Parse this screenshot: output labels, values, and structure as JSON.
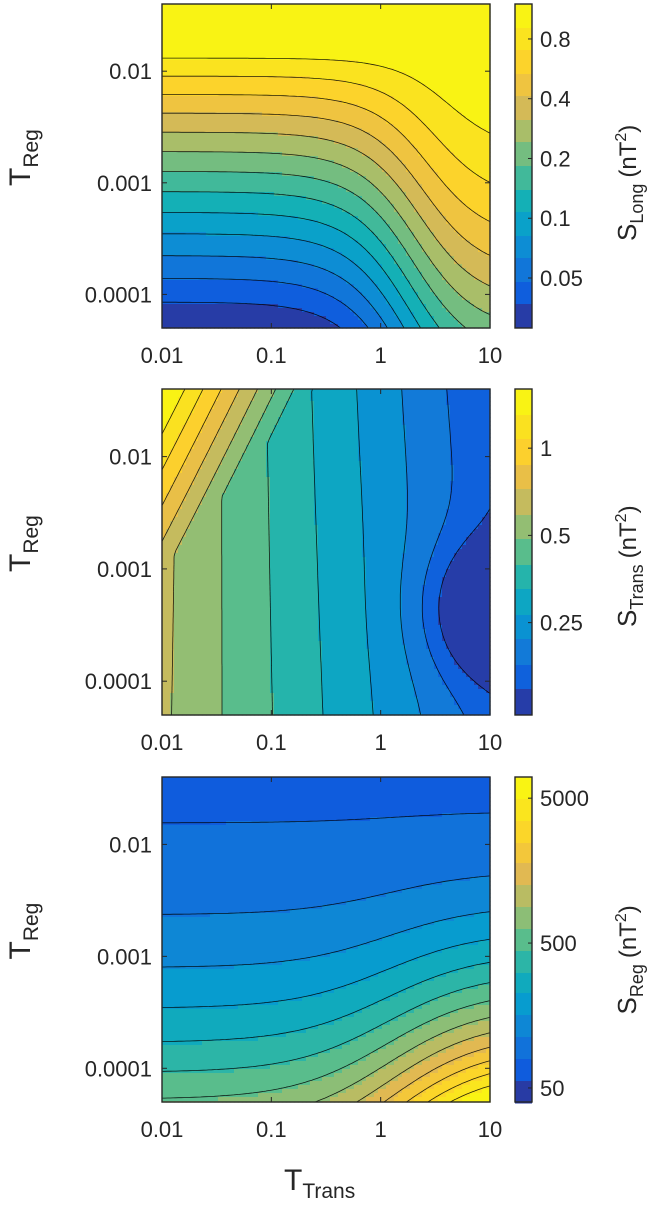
{
  "chart_data": [
    {
      "type": "heatmap",
      "x_scale": "log",
      "y_scale": "log",
      "colorbar_scale": "log",
      "colormap": "parula",
      "xlim": [
        0.01,
        10
      ],
      "ylim": [
        5e-05,
        0.04
      ],
      "x_ticks": [
        "0.01",
        "0.1",
        "1",
        "10"
      ],
      "y_ticks": [
        "0.0001",
        "0.001",
        "0.01"
      ],
      "ylabel": "T",
      "ylabel_sub": "Reg",
      "colorbar_label": "S",
      "colorbar_label_sub": "Long",
      "colorbar_unit_pre": "(nT",
      "colorbar_unit_sup": "2",
      "colorbar_unit_post": ")",
      "colorbar_range": [
        0.028,
        1.2
      ],
      "colorbar_ticks": [
        "0.05",
        "0.1",
        "0.2",
        "0.4",
        "0.8"
      ],
      "contour_levels": 14
    },
    {
      "type": "heatmap",
      "x_scale": "log",
      "y_scale": "log",
      "colorbar_scale": "log",
      "colormap": "parula",
      "xlim": [
        0.01,
        10
      ],
      "ylim": [
        5e-05,
        0.04
      ],
      "x_ticks": [
        "0.01",
        "0.1",
        "1",
        "10"
      ],
      "y_ticks": [
        "0.0001",
        "0.001",
        "0.01"
      ],
      "ylabel": "T",
      "ylabel_sub": "Reg",
      "colorbar_label": "S",
      "colorbar_label_sub": "Trans",
      "colorbar_unit_pre": "(nT",
      "colorbar_unit_sup": "2",
      "colorbar_unit_post": ")",
      "colorbar_range": [
        0.12,
        1.6
      ],
      "colorbar_ticks": [
        "0.25",
        "0.5",
        "1"
      ],
      "contour_levels": 13
    },
    {
      "type": "heatmap",
      "x_scale": "log",
      "y_scale": "log",
      "colorbar_scale": "log",
      "colormap": "parula",
      "xlim": [
        0.01,
        10
      ],
      "ylim": [
        5e-05,
        0.04
      ],
      "x_ticks": [
        "0.01",
        "0.1",
        "1",
        "10"
      ],
      "y_ticks": [
        "0.0001",
        "0.001",
        "0.01"
      ],
      "ylabel": "T",
      "ylabel_sub": "Reg",
      "xlabel": "T",
      "xlabel_sub": "Trans",
      "colorbar_label": "S",
      "colorbar_label_sub": "Reg",
      "colorbar_unit_pre": "(nT",
      "colorbar_unit_sup": "2",
      "colorbar_unit_post": ")",
      "colorbar_range": [
        40,
        7000
      ],
      "colorbar_ticks": [
        "50",
        "500",
        "5000"
      ],
      "contour_levels": 15
    }
  ]
}
